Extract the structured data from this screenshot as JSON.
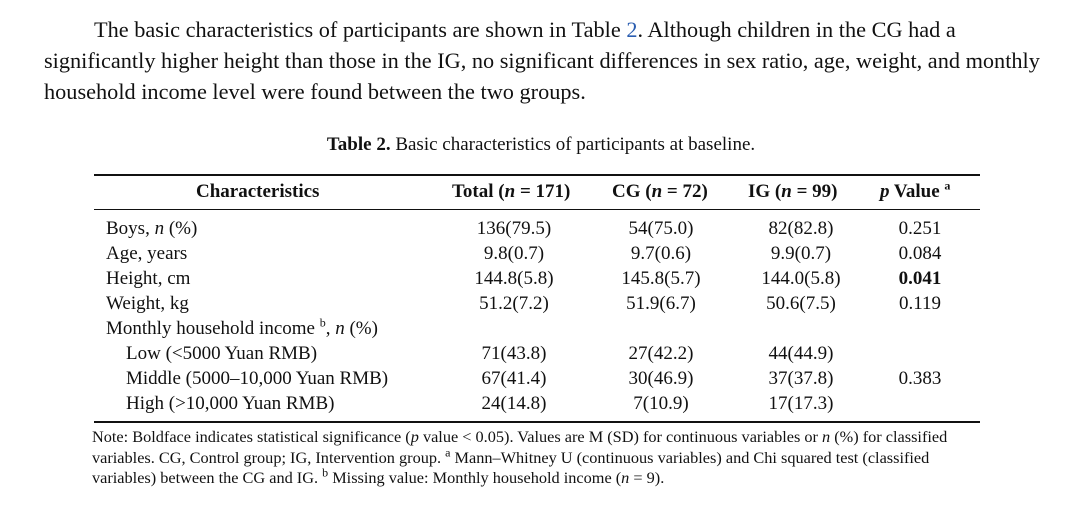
{
  "paragraph": {
    "part1": "The basic characteristics of participants are shown in Table ",
    "ref": "2",
    "part2": ". Although children in the CG had a significantly higher height than those in the IG, no significant differences in sex ratio, age, weight, and monthly household income level were found between the two groups."
  },
  "caption": {
    "label": "Table 2.",
    "text": " Basic characteristics of participants at baseline."
  },
  "table": {
    "headers": {
      "characteristics": "Characteristics",
      "total_pre": "Total (",
      "total_n": "n",
      "total_post": " = 171)",
      "cg_pre": "CG (",
      "cg_n": "n",
      "cg_post": " = 72)",
      "ig_pre": "IG (",
      "ig_n": "n",
      "ig_post": " = 99)",
      "p": "p",
      "p_post": " Value ",
      "p_sup": "a"
    },
    "rows": [
      {
        "label_pre": "Boys, ",
        "label_n": "n",
        "label_post": " (%)",
        "total": "136(79.5)",
        "cg": "54(75.0)",
        "ig": "82(82.8)",
        "p": "0.251"
      },
      {
        "label": "Age, years",
        "total": "9.8(0.7)",
        "cg": "9.7(0.6)",
        "ig": "9.9(0.7)",
        "p": "0.084"
      },
      {
        "label": "Height, cm",
        "total": "144.8(5.8)",
        "cg": "145.8(5.7)",
        "ig": "144.0(5.8)",
        "p": "0.041"
      },
      {
        "label": "Weight, kg",
        "total": "51.2(7.2)",
        "cg": "51.9(6.7)",
        "ig": "50.6(7.5)",
        "p": "0.119"
      }
    ],
    "income_label": "Monthly household income ",
    "income_sup": "b",
    "income_post_pre": ", ",
    "income_n": "n",
    "income_post": " (%)",
    "income_rows": [
      {
        "label": "Low (<5000 Yuan RMB)",
        "total": "71(43.8)",
        "cg": "27(42.2)",
        "ig": "44(44.9)"
      },
      {
        "label": "Middle (5000–10,000 Yuan RMB)",
        "total": "67(41.4)",
        "cg": "30(46.9)",
        "ig": "37(37.8)"
      },
      {
        "label": "High (>10,000 Yuan RMB)",
        "total": "24(14.8)",
        "cg": "7(10.9)",
        "ig": "17(17.3)"
      }
    ],
    "income_p": "0.383"
  },
  "note": {
    "t1": "Note: Boldface indicates statistical significance (",
    "t1_i": "p",
    "t2": " value < 0.05). Values are M (SD) for continuous variables or ",
    "t2_i": "n",
    "t3": " (%) for classified variables. CG, Control group; IG, Intervention group. ",
    "sup_a": "a",
    "t4": " Mann–Whitney U (continuous variables) and Chi squared test (classified variables) between the CG and IG. ",
    "sup_b": "b",
    "t5": " Missing value: Monthly household income (",
    "t5_i": "n",
    "t6": " = 9)."
  }
}
